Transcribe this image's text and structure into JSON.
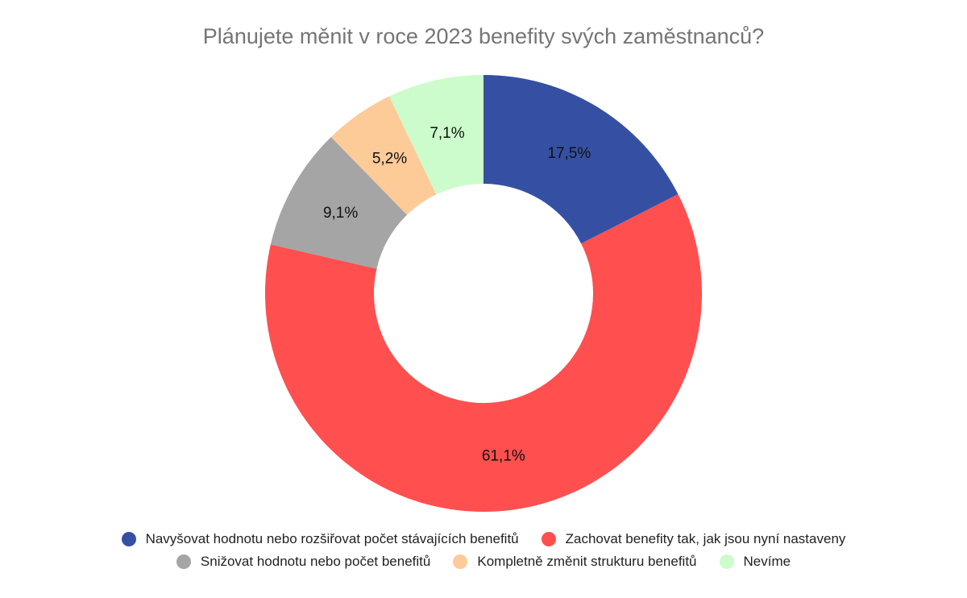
{
  "chart_data": {
    "type": "pie",
    "variant": "donut",
    "title": "Plánujete měnit v roce 2023 benefity svých zaměstnanců?",
    "legend_position": "bottom",
    "slices": [
      {
        "name": "Navyšovat hodnotu nebo rozšiřovat počet stávajících benefitů",
        "value": 17.5,
        "label": "17,5%",
        "color": "#3550a3"
      },
      {
        "name": "Zachovat benefity tak, jak jsou nyní nastaveny",
        "value": 61.1,
        "label": "61,1%",
        "color": "#ff4f4f"
      },
      {
        "name": "Snižovat hodnotu nebo počet benefitů",
        "value": 9.1,
        "label": "9,1%",
        "color": "#a5a5a5"
      },
      {
        "name": "Kompletně změnit strukturu benefitů",
        "value": 5.2,
        "label": "5,2%",
        "color": "#fdcb98"
      },
      {
        "name": "Nevíme",
        "value": 7.1,
        "label": "7,1%",
        "color": "#ccfccc"
      }
    ]
  }
}
